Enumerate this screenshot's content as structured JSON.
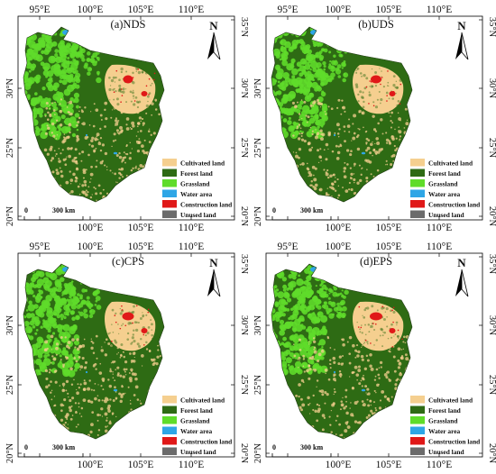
{
  "figure": {
    "panels": [
      {
        "label": "(a)NDS"
      },
      {
        "label": "(b)UDS"
      },
      {
        "label": "(c)CPS"
      },
      {
        "label": "(d)EPS"
      }
    ],
    "top_lon_labels": [
      "95°E",
      "100°E",
      "105°E",
      "110°E"
    ],
    "bottom_lon_labels": [
      "100°E",
      "105°E",
      "110°E"
    ],
    "left_lat_labels": [
      "30°N",
      "25°N",
      "20°N"
    ],
    "right_lat_labels": [
      "35°N",
      "30°N",
      "25°N",
      "20°N"
    ],
    "north_arrow": "N",
    "scale_bar": {
      "start": "0",
      "end": "300 km"
    },
    "legend": [
      {
        "name": "Cultivated land",
        "color": "#f5cf8f"
      },
      {
        "name": "Forest land",
        "color": "#2e6b14"
      },
      {
        "name": "Grassland",
        "color": "#5fdc2a"
      },
      {
        "name": "Water area",
        "color": "#2ea6e6"
      },
      {
        "name": "Construction land",
        "color": "#e01818"
      },
      {
        "name": "Unused land",
        "color": "#6b6b6b"
      }
    ]
  }
}
